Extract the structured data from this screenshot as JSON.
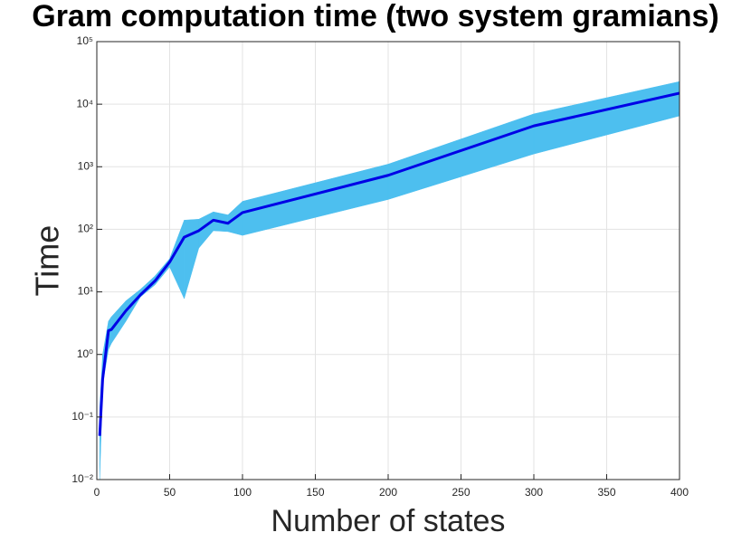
{
  "chart_data": {
    "type": "line",
    "title": "Gram computation time (two system gramians)",
    "xlabel": "Number of states",
    "ylabel": "Time",
    "log_y": true,
    "grid": true,
    "x": [
      2,
      4,
      8,
      10,
      20,
      30,
      40,
      50,
      60,
      70,
      80,
      90,
      100,
      200,
      300,
      400
    ],
    "series": [
      {
        "color": "#0000e6",
        "values": [
          0.05,
          0.4,
          2.4,
          2.5,
          5,
          9,
          15,
          30,
          75,
          95,
          140,
          125,
          185,
          730,
          4500,
          15000
        ]
      }
    ],
    "band": {
      "color": "#4dbfef",
      "upper": [
        0.14,
        1,
        3.4,
        4,
        7.2,
        11,
        18,
        34,
        140,
        145,
        190,
        170,
        280,
        1100,
        7000,
        23000
      ],
      "lower": [
        0.01,
        0.33,
        1.2,
        1.5,
        3.4,
        8.3,
        13,
        25,
        7.8,
        50,
        95,
        92,
        80,
        300,
        1600,
        6500
      ]
    },
    "xlim": [
      0,
      400
    ],
    "xticks": [
      0,
      50,
      100,
      150,
      200,
      250,
      300,
      350,
      400
    ],
    "ylim": [
      0.01,
      100000
    ],
    "yticks": [
      {
        "value": 0.01,
        "label": "10⁻²"
      },
      {
        "value": 0.1,
        "label": "10⁻¹"
      },
      {
        "value": 1,
        "label": "10⁰"
      },
      {
        "value": 10,
        "label": "10¹"
      },
      {
        "value": 100,
        "label": "10²"
      },
      {
        "value": 1000,
        "label": "10³"
      },
      {
        "value": 10000,
        "label": "10⁴"
      },
      {
        "value": 100000,
        "label": "10⁵"
      }
    ]
  }
}
